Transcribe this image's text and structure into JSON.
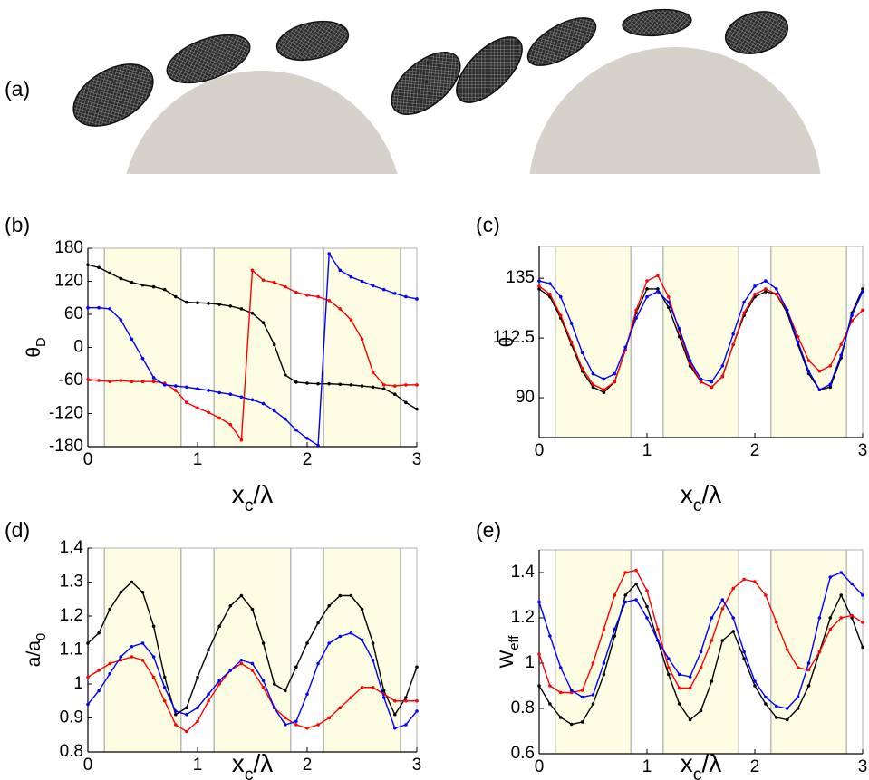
{
  "panel_a_label": "(a)",
  "chart_data": [
    {
      "type": "line",
      "label": "(b)",
      "xlabel": {
        "base": "x",
        "sub": "c",
        "rest": "/λ"
      },
      "ylabel": {
        "base": "θ",
        "sub": "D"
      },
      "x": [
        0,
        0.1,
        0.2,
        0.3,
        0.4,
        0.5,
        0.6,
        0.7,
        0.8,
        0.9,
        1,
        1.1,
        1.2,
        1.3,
        1.4,
        1.5,
        1.6,
        1.7,
        1.8,
        1.9,
        2,
        2.1,
        2.2,
        2.3,
        2.4,
        2.5,
        2.6,
        2.7,
        2.8,
        2.9,
        3
      ],
      "xlim": [
        0,
        3
      ],
      "xticks": [
        0,
        1,
        2,
        3
      ],
      "ylim": [
        -180,
        180
      ],
      "yticks": [
        -180,
        -120,
        -60,
        0,
        60,
        120,
        180
      ],
      "shaded": [
        [
          0.15,
          0.85
        ],
        [
          1.15,
          1.85
        ],
        [
          2.15,
          2.85
        ]
      ],
      "series": [
        {
          "color": "#000000",
          "values": [
            150,
            145,
            135,
            125,
            118,
            113,
            110,
            105,
            92,
            82,
            81,
            80,
            78,
            75,
            70,
            62,
            45,
            5,
            -50,
            -63,
            -65,
            -66,
            -66,
            -67,
            -68,
            -70,
            -72,
            -75,
            -85,
            -100,
            -112
          ]
        },
        {
          "color": "#ff0000",
          "values": [
            -58,
            -60,
            -62,
            -60,
            -62,
            -62,
            -62,
            -65,
            -78,
            -100,
            -110,
            -118,
            -128,
            -140,
            -168,
            140,
            122,
            118,
            110,
            100,
            95,
            92,
            85,
            70,
            50,
            15,
            -45,
            -68,
            -70,
            -68,
            -68
          ]
        },
        {
          "color": "#0000ff",
          "values": [
            72,
            72,
            70,
            50,
            15,
            -20,
            -55,
            -68,
            -70,
            -72,
            -75,
            -78,
            -82,
            -85,
            -90,
            -95,
            -102,
            -115,
            -130,
            -150,
            -165,
            -178,
            170,
            140,
            128,
            120,
            112,
            105,
            98,
            92,
            88
          ]
        }
      ]
    },
    {
      "type": "line",
      "label": "(c)",
      "xlabel": {
        "base": "x",
        "sub": "c",
        "rest": "/λ"
      },
      "ylabel": {
        "base": "θ"
      },
      "x": [
        0,
        0.1,
        0.2,
        0.3,
        0.4,
        0.5,
        0.6,
        0.7,
        0.8,
        0.9,
        1,
        1.1,
        1.2,
        1.3,
        1.4,
        1.5,
        1.6,
        1.7,
        1.8,
        1.9,
        2,
        2.1,
        2.2,
        2.3,
        2.4,
        2.5,
        2.6,
        2.7,
        2.8,
        2.9,
        3
      ],
      "xlim": [
        0,
        3
      ],
      "xticks": [
        0,
        1,
        2,
        3
      ],
      "ylim": [
        75,
        147
      ],
      "yticks": [
        90,
        112.5,
        135
      ],
      "shaded": [
        [
          0.15,
          0.85
        ],
        [
          1.15,
          1.85
        ],
        [
          2.15,
          2.85
        ]
      ],
      "series": [
        {
          "color": "#000000",
          "values": [
            131,
            128,
            120,
            110,
            100,
            94,
            92,
            96,
            108,
            122,
            131,
            131,
            124,
            113,
            102,
            96,
            94,
            98,
            110,
            121,
            128,
            130,
            129,
            122,
            110,
            99,
            93,
            94,
            105,
            122,
            131
          ]
        },
        {
          "color": "#ff0000",
          "values": [
            132,
            129,
            121,
            111,
            101,
            95,
            93,
            96,
            108,
            123,
            134,
            136,
            128,
            115,
            103,
            96,
            94,
            98,
            110,
            122,
            129,
            131,
            129,
            123,
            113,
            104,
            100,
            102,
            110,
            119,
            123
          ]
        },
        {
          "color": "#0000ff",
          "values": [
            134,
            133,
            128,
            118,
            107,
            99,
            97,
            99,
            109,
            120,
            128,
            130,
            126,
            116,
            104,
            97,
            96,
            102,
            114,
            126,
            132,
            134,
            131,
            123,
            111,
            100,
            93,
            95,
            106,
            121,
            130
          ]
        }
      ]
    },
    {
      "type": "line",
      "label": "(d)",
      "xlabel": {
        "base": "x",
        "sub": "c",
        "rest": "/λ"
      },
      "ylabel": {
        "base": "a/a",
        "sub": "0"
      },
      "x": [
        0,
        0.1,
        0.2,
        0.3,
        0.4,
        0.5,
        0.6,
        0.7,
        0.8,
        0.9,
        1,
        1.1,
        1.2,
        1.3,
        1.4,
        1.5,
        1.6,
        1.7,
        1.8,
        1.9,
        2,
        2.1,
        2.2,
        2.3,
        2.4,
        2.5,
        2.6,
        2.7,
        2.8,
        2.9,
        3
      ],
      "xlim": [
        0,
        3
      ],
      "xticks": [
        0,
        1,
        2,
        3
      ],
      "ylim": [
        0.8,
        1.4
      ],
      "yticks": [
        0.8,
        0.9,
        1,
        1.1,
        1.2,
        1.3,
        1.4
      ],
      "shaded": [
        [
          0.15,
          0.85
        ],
        [
          1.15,
          1.85
        ],
        [
          2.15,
          2.85
        ]
      ],
      "series": [
        {
          "color": "#000000",
          "values": [
            1.12,
            1.15,
            1.22,
            1.27,
            1.3,
            1.27,
            1.17,
            1.02,
            0.91,
            0.93,
            1.02,
            1.1,
            1.17,
            1.23,
            1.26,
            1.22,
            1.12,
            1.0,
            0.98,
            1.05,
            1.12,
            1.18,
            1.23,
            1.26,
            1.26,
            1.22,
            1.12,
            0.98,
            0.91,
            0.96,
            1.05
          ]
        },
        {
          "color": "#ff0000",
          "values": [
            1.02,
            1.04,
            1.06,
            1.07,
            1.08,
            1.07,
            1.02,
            0.95,
            0.88,
            0.86,
            0.89,
            0.95,
            1.0,
            1.04,
            1.06,
            1.04,
            0.99,
            0.93,
            0.9,
            0.88,
            0.87,
            0.88,
            0.9,
            0.93,
            0.96,
            0.99,
            0.99,
            0.97,
            0.95,
            0.95,
            0.95
          ]
        },
        {
          "color": "#0000ff",
          "values": [
            0.94,
            0.98,
            1.03,
            1.08,
            1.11,
            1.12,
            1.08,
            0.99,
            0.92,
            0.91,
            0.93,
            0.97,
            1.01,
            1.04,
            1.07,
            1.06,
            1.01,
            0.93,
            0.88,
            0.89,
            0.97,
            1.06,
            1.12,
            1.14,
            1.15,
            1.13,
            1.07,
            0.96,
            0.87,
            0.88,
            0.92
          ]
        }
      ]
    },
    {
      "type": "line",
      "label": "(e)",
      "xlabel": {
        "base": "x",
        "sub": "c",
        "rest": "/λ"
      },
      "ylabel": {
        "base": "W",
        "sub": "eff"
      },
      "x": [
        0,
        0.1,
        0.2,
        0.3,
        0.4,
        0.5,
        0.6,
        0.7,
        0.8,
        0.9,
        1,
        1.1,
        1.2,
        1.3,
        1.4,
        1.5,
        1.6,
        1.7,
        1.8,
        1.9,
        2,
        2.1,
        2.2,
        2.3,
        2.4,
        2.5,
        2.6,
        2.7,
        2.8,
        2.9,
        3
      ],
      "xlim": [
        0,
        3
      ],
      "xticks": [
        0,
        1,
        2,
        3
      ],
      "ylim": [
        0.6,
        1.5
      ],
      "yticks": [
        0.6,
        0.8,
        1,
        1.2,
        1.4
      ],
      "shaded": [
        [
          0.15,
          0.85
        ],
        [
          1.15,
          1.85
        ],
        [
          2.15,
          2.85
        ]
      ],
      "series": [
        {
          "color": "#000000",
          "values": [
            0.9,
            0.82,
            0.76,
            0.73,
            0.74,
            0.82,
            0.95,
            1.12,
            1.3,
            1.35,
            1.25,
            1.1,
            0.95,
            0.82,
            0.75,
            0.79,
            0.92,
            1.1,
            1.14,
            1.02,
            0.9,
            0.82,
            0.76,
            0.75,
            0.8,
            0.9,
            1.05,
            1.2,
            1.3,
            1.2,
            1.07
          ]
        },
        {
          "color": "#ff0000",
          "values": [
            1.04,
            0.9,
            0.87,
            0.87,
            0.88,
            1.0,
            1.15,
            1.3,
            1.4,
            1.41,
            1.32,
            1.15,
            0.98,
            0.89,
            0.89,
            0.98,
            1.1,
            1.24,
            1.33,
            1.37,
            1.36,
            1.3,
            1.18,
            1.06,
            0.98,
            0.97,
            1.05,
            1.15,
            1.2,
            1.21,
            1.18
          ]
        },
        {
          "color": "#0000ff",
          "values": [
            1.27,
            1.12,
            0.98,
            0.88,
            0.85,
            0.86,
            1.0,
            1.15,
            1.27,
            1.28,
            1.2,
            1.1,
            1.02,
            0.95,
            0.94,
            1.05,
            1.2,
            1.28,
            1.2,
            1.05,
            0.92,
            0.85,
            0.81,
            0.8,
            0.85,
            1.0,
            1.2,
            1.38,
            1.4,
            1.35,
            1.3
          ]
        }
      ]
    }
  ]
}
